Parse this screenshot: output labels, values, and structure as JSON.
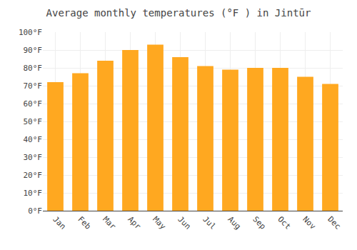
{
  "chart_data": {
    "type": "bar",
    "title": "Average monthly temperatures (°F ) in Jintūr",
    "categories": [
      "Jan",
      "Feb",
      "Mar",
      "Apr",
      "May",
      "Jun",
      "Jul",
      "Aug",
      "Sep",
      "Oct",
      "Nov",
      "Dec"
    ],
    "values": [
      72,
      77,
      84,
      90,
      93,
      86,
      81,
      79,
      80,
      80,
      75,
      71
    ],
    "color": "#FFA820",
    "ylim": [
      0,
      100
    ],
    "yticks": [
      {
        "value": 0,
        "label": "0°F"
      },
      {
        "value": 10,
        "label": "10°F"
      },
      {
        "value": 20,
        "label": "20°F"
      },
      {
        "value": 30,
        "label": "30°F"
      },
      {
        "value": 40,
        "label": "40°F"
      },
      {
        "value": 50,
        "label": "50°F"
      },
      {
        "value": 60,
        "label": "60°F"
      },
      {
        "value": 70,
        "label": "70°F"
      },
      {
        "value": 80,
        "label": "80°F"
      },
      {
        "value": 90,
        "label": "90°F"
      },
      {
        "value": 100,
        "label": "100°F"
      }
    ],
    "grid": true
  }
}
